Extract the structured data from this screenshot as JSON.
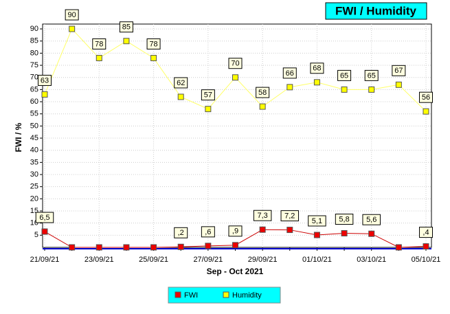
{
  "chart_data": {
    "type": "line",
    "title": "FWI / Humidity",
    "y_label": "FWI / %",
    "x_label": "Sep - Oct 2021",
    "categories": [
      "21/09/21",
      null,
      "23/09/21",
      null,
      "25/09/21",
      null,
      "27/09/21",
      null,
      "29/09/21",
      null,
      "01/10/21",
      null,
      "03/10/21",
      null,
      "05/10/21"
    ],
    "series": [
      {
        "name": "FWI",
        "color": "#cc0000",
        "marker_color": "#ee0000",
        "values": [
          6.5,
          0,
          0,
          0,
          0,
          0.2,
          0.6,
          0.9,
          7.3,
          7.2,
          5.1,
          5.8,
          5.6,
          0,
          0.4
        ],
        "value_labels": [
          "6,5",
          null,
          null,
          null,
          null,
          ",2",
          ",6",
          ",9",
          "7,3",
          "7,2",
          "5,1",
          "5,8",
          "5,6",
          null,
          ",4"
        ]
      },
      {
        "name": "Humidity",
        "color": "#ffff66",
        "marker_color": "#ffff00",
        "values": [
          63,
          90,
          78,
          85,
          78,
          62,
          57,
          70,
          58,
          66,
          68,
          65,
          65,
          67,
          56
        ]
      }
    ],
    "ylim": [
      0,
      92
    ],
    "yticks": [
      5,
      10,
      15,
      20,
      25,
      30,
      35,
      40,
      45,
      50,
      55,
      60,
      65,
      70,
      75,
      80,
      85,
      90
    ],
    "grid": true
  }
}
